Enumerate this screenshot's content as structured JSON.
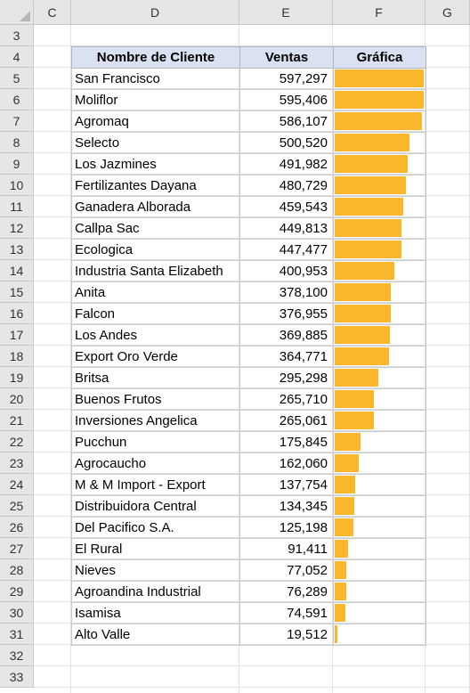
{
  "columns": [
    "C",
    "D",
    "E",
    "F",
    "G"
  ],
  "rows": [
    "3",
    "4",
    "5",
    "6",
    "7",
    "8",
    "9",
    "10",
    "11",
    "12",
    "13",
    "14",
    "15",
    "16",
    "17",
    "18",
    "19",
    "20",
    "21",
    "22",
    "23",
    "24",
    "25",
    "26",
    "27",
    "28",
    "29",
    "30",
    "31",
    "32",
    "33"
  ],
  "table": {
    "headers": [
      "Nombre de Cliente",
      "Ventas",
      "Gráfica"
    ],
    "bar_color": "#fbb72b",
    "header_fill": "#d9e1f2",
    "rows": [
      {
        "name": "San Francisco",
        "sales": "597,297",
        "value": 597297
      },
      {
        "name": "Moliflor",
        "sales": "595,406",
        "value": 595406
      },
      {
        "name": "Agromaq",
        "sales": "586,107",
        "value": 586107
      },
      {
        "name": "Selecto",
        "sales": "500,520",
        "value": 500520
      },
      {
        "name": "Los Jazmines",
        "sales": "491,982",
        "value": 491982
      },
      {
        "name": "Fertilizantes Dayana",
        "sales": "480,729",
        "value": 480729
      },
      {
        "name": "Ganadera Alborada",
        "sales": "459,543",
        "value": 459543
      },
      {
        "name": "Callpa Sac",
        "sales": "449,813",
        "value": 449813
      },
      {
        "name": "Ecologica",
        "sales": "447,477",
        "value": 447477
      },
      {
        "name": "Industria Santa Elizabeth",
        "sales": "400,953",
        "value": 400953
      },
      {
        "name": "Anita",
        "sales": "378,100",
        "value": 378100
      },
      {
        "name": "Falcon",
        "sales": "376,955",
        "value": 376955
      },
      {
        "name": "Los Andes",
        "sales": "369,885",
        "value": 369885
      },
      {
        "name": "Export Oro Verde",
        "sales": "364,771",
        "value": 364771
      },
      {
        "name": "Britsa",
        "sales": "295,298",
        "value": 295298
      },
      {
        "name": "Buenos Frutos",
        "sales": "265,710",
        "value": 265710
      },
      {
        "name": "Inversiones Angelica",
        "sales": "265,061",
        "value": 265061
      },
      {
        "name": "Pucchun",
        "sales": "175,845",
        "value": 175845
      },
      {
        "name": "Agrocaucho",
        "sales": "162,060",
        "value": 162060
      },
      {
        "name": "M & M Import - Export",
        "sales": "137,754",
        "value": 137754
      },
      {
        "name": "Distribuidora Central",
        "sales": "134,345",
        "value": 134345
      },
      {
        "name": "Del Pacifico S.A.",
        "sales": "125,198",
        "value": 125198
      },
      {
        "name": "El Rural",
        "sales": "91,411",
        "value": 91411
      },
      {
        "name": "Nieves",
        "sales": "77,052",
        "value": 77052
      },
      {
        "name": "Agroandina Industrial",
        "sales": "76,289",
        "value": 76289
      },
      {
        "name": "Isamisa",
        "sales": "74,591",
        "value": 74591
      },
      {
        "name": "Alto Valle",
        "sales": "19,512",
        "value": 19512
      }
    ]
  }
}
